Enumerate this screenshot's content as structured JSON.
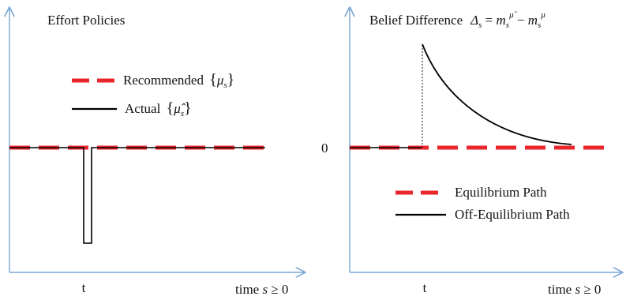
{
  "left_panel": {
    "title": "Effort Policies",
    "legend": {
      "recommended_label": "Recommended",
      "recommended_symbol": "{μs}",
      "actual_label": "Actual",
      "actual_symbol": "{μ̂s}"
    },
    "x_tick_label": "t",
    "x_axis_label": "time s ≥ 0"
  },
  "right_panel": {
    "title_text": "Belief Difference",
    "title_formula": "Δs = ms^μ̂ − ms^μ",
    "y_zero_label": "0",
    "legend": {
      "equilibrium_label": "Equilibrium Path",
      "off_equilibrium_label": "Off-Equilibrium Path"
    },
    "x_tick_label": "t",
    "x_axis_label": "time s ≥ 0"
  },
  "colors": {
    "axis": "#7aa6d6",
    "dashed": "#e8262b",
    "solid": "#000000"
  }
}
